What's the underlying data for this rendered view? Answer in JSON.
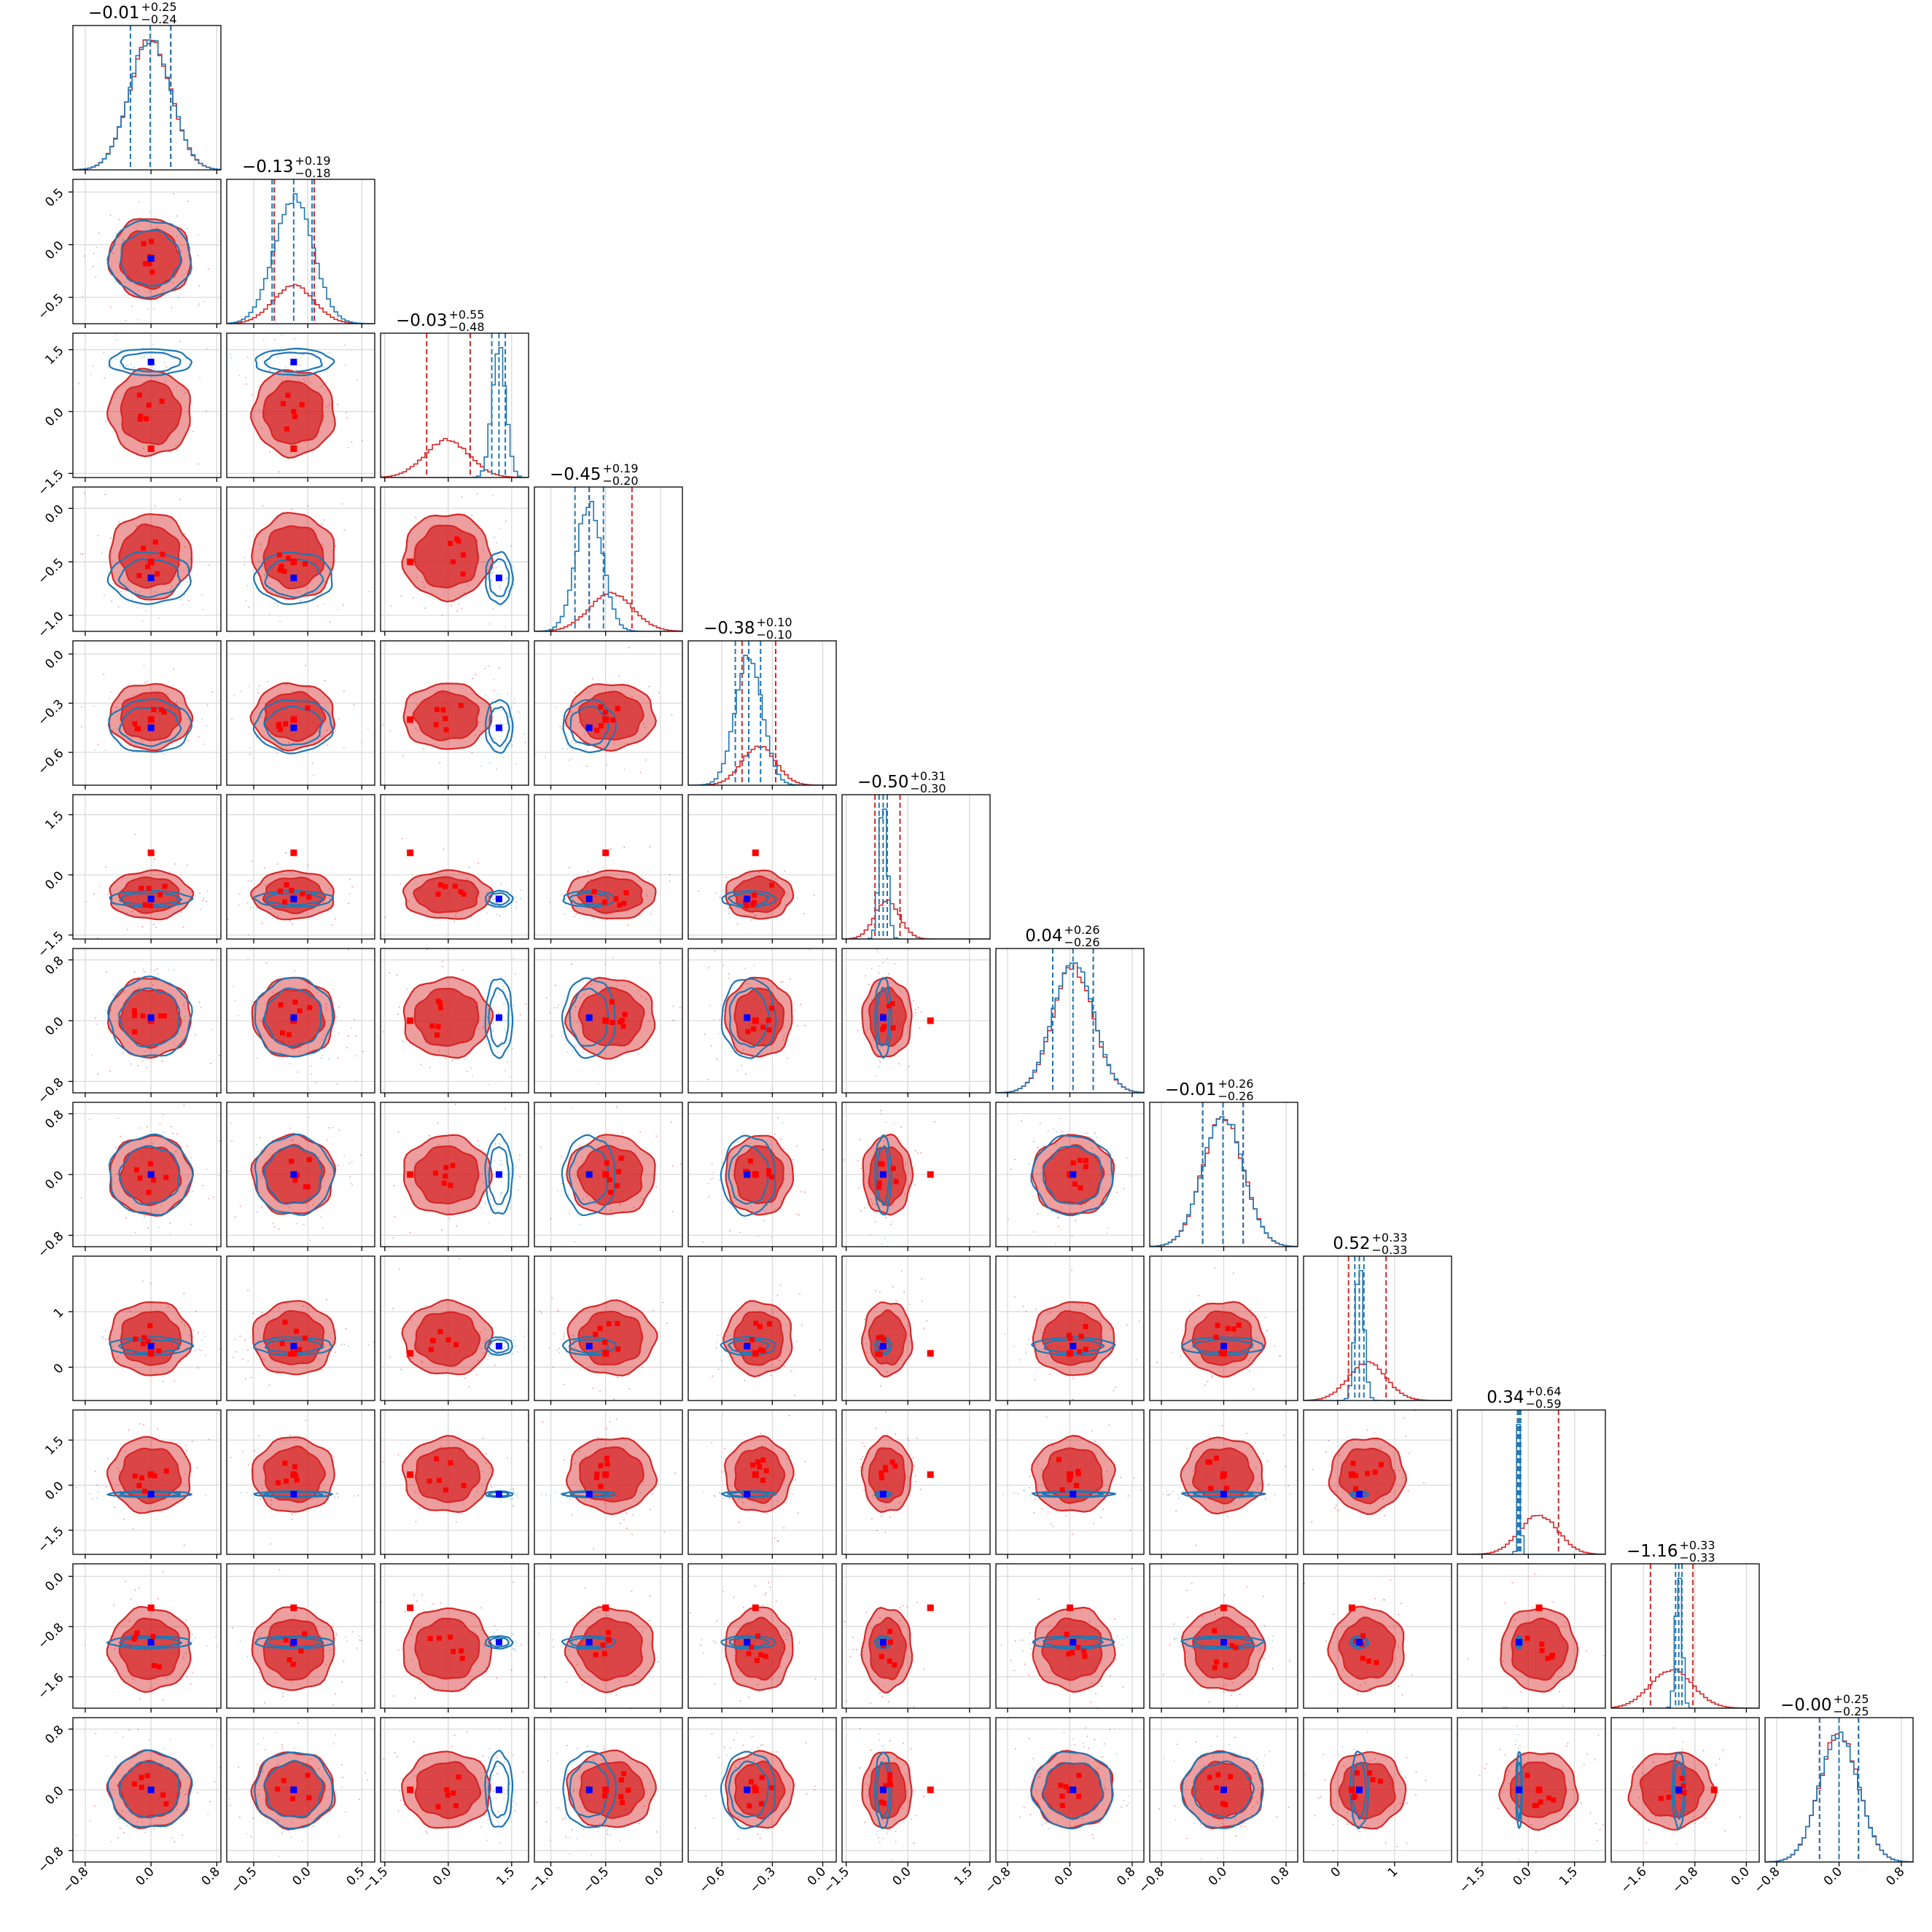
{
  "chart_data": {
    "type": "corner",
    "n_params": 12,
    "colors": {
      "series_1": "#d62728",
      "series_2": "#1f77b4",
      "marker_red": "#ff0000",
      "marker_blue": "#0000ff"
    },
    "grid": true,
    "legend": "none",
    "series": [
      {
        "color": "#d62728"
      },
      {
        "color": "#1f77b4"
      }
    ],
    "params": [
      {
        "title_main": "−0.01",
        "title_sup": "+0.25",
        "title_sub": "−0.24",
        "range": [
          -0.95,
          0.85
        ],
        "ticks": [
          "−0.8",
          "0.0",
          "0.8"
        ],
        "tick_values": [
          -0.8,
          0.0,
          0.8
        ],
        "series_1": {
          "q16": -0.25,
          "q50": -0.01,
          "q84": 0.24,
          "sigma": 0.25
        },
        "series_2": {
          "q16": -0.25,
          "q50": -0.01,
          "q84": 0.24,
          "sigma": 0.25
        },
        "truth_red": 0.0,
        "truth_blue": 0.0
      },
      {
        "title_main": "−0.13",
        "title_sup": "+0.19",
        "title_sub": "−0.18",
        "range": [
          -0.75,
          0.62
        ],
        "ticks": [
          "−0.5",
          "0.0",
          "0.5"
        ],
        "tick_values": [
          -0.5,
          0.0,
          0.5
        ],
        "series_1": {
          "q16": -0.31,
          "q50": -0.13,
          "q84": 0.06,
          "sigma": 0.19
        },
        "series_2": {
          "q16": -0.33,
          "q50": -0.13,
          "q84": 0.04,
          "sigma": 0.18
        },
        "truth_red": -0.13,
        "truth_blue": -0.13
      },
      {
        "title_main": "−0.03",
        "title_sup": "+0.55",
        "title_sub": "−0.48",
        "range": [
          -1.6,
          1.9
        ],
        "ticks": [
          "−1.5",
          "0.0",
          "1.5"
        ],
        "tick_values": [
          -1.5,
          0.0,
          1.5
        ],
        "series_1": {
          "q16": -0.51,
          "q50": -0.03,
          "q84": 0.52,
          "sigma": 0.52
        },
        "series_2": {
          "q16": 1.03,
          "q50": 1.2,
          "q84": 1.35,
          "sigma": 0.16
        },
        "truth_red": -0.9,
        "truth_blue": 1.2
      },
      {
        "title_main": "−0.45",
        "title_sup": "+0.19",
        "title_sub": "−0.20",
        "range": [
          -1.15,
          0.2
        ],
        "ticks": [
          "−1.0",
          "−0.5",
          "0.0"
        ],
        "tick_values": [
          -1.0,
          -0.5,
          0.0
        ],
        "series_1": {
          "q16": -0.65,
          "q50": -0.45,
          "q84": -0.26,
          "sigma": 0.2
        },
        "series_2": {
          "q16": -0.78,
          "q50": -0.65,
          "q84": -0.52,
          "sigma": 0.12
        },
        "truth_red": -0.5,
        "truth_blue": -0.65
      },
      {
        "title_main": "−0.38",
        "title_sup": "+0.10",
        "title_sub": "−0.10",
        "range": [
          -0.8,
          0.08
        ],
        "ticks": [
          "−0.6",
          "−0.3",
          "0.0"
        ],
        "tick_values": [
          -0.6,
          -0.3,
          0.0
        ],
        "series_1": {
          "q16": -0.48,
          "q50": -0.38,
          "q84": -0.28,
          "sigma": 0.1
        },
        "series_2": {
          "q16": -0.52,
          "q50": -0.44,
          "q84": -0.37,
          "sigma": 0.08
        },
        "truth_red": -0.4,
        "truth_blue": -0.45
      },
      {
        "title_main": "−0.50",
        "title_sup": "+0.31",
        "title_sub": "−0.30",
        "range": [
          -1.6,
          2.0
        ],
        "ticks": [
          "−1.5",
          "0.0",
          "1.5"
        ],
        "tick_values": [
          -1.5,
          0.0,
          1.5
        ],
        "series_1": {
          "q16": -0.8,
          "q50": -0.5,
          "q84": -0.19,
          "sigma": 0.3
        },
        "series_2": {
          "q16": -0.7,
          "q50": -0.6,
          "q84": -0.5,
          "sigma": 0.1
        },
        "truth_red": 0.55,
        "truth_blue": -0.6
      },
      {
        "title_main": "0.04",
        "title_sup": "+0.26",
        "title_sub": "−0.26",
        "range": [
          -0.95,
          0.95
        ],
        "ticks": [
          "−0.8",
          "0.0",
          "0.8"
        ],
        "tick_values": [
          -0.8,
          0.0,
          0.8
        ],
        "series_1": {
          "q16": -0.22,
          "q50": 0.04,
          "q84": 0.3,
          "sigma": 0.26
        },
        "series_2": {
          "q16": -0.22,
          "q50": 0.04,
          "q84": 0.3,
          "sigma": 0.26
        },
        "truth_red": 0.0,
        "truth_blue": 0.04
      },
      {
        "title_main": "−0.01",
        "title_sup": "+0.26",
        "title_sub": "−0.26",
        "range": [
          -0.95,
          0.95
        ],
        "ticks": [
          "−0.8",
          "0.0",
          "0.8"
        ],
        "tick_values": [
          -0.8,
          0.0,
          0.8
        ],
        "series_1": {
          "q16": -0.27,
          "q50": -0.01,
          "q84": 0.25,
          "sigma": 0.26
        },
        "series_2": {
          "q16": -0.27,
          "q50": -0.01,
          "q84": 0.25,
          "sigma": 0.26
        },
        "truth_red": 0.0,
        "truth_blue": 0.0
      },
      {
        "title_main": "0.52",
        "title_sup": "+0.33",
        "title_sub": "−0.33",
        "range": [
          -0.6,
          2.0
        ],
        "ticks": [
          "0",
          "1"
        ],
        "tick_values": [
          0,
          1
        ],
        "series_1": {
          "q16": 0.19,
          "q50": 0.52,
          "q84": 0.85,
          "sigma": 0.33
        },
        "series_2": {
          "q16": 0.3,
          "q50": 0.38,
          "q84": 0.46,
          "sigma": 0.08
        },
        "truth_red": 0.25,
        "truth_blue": 0.38
      },
      {
        "title_main": "0.34",
        "title_sup": "+0.64",
        "title_sub": "−0.59",
        "range": [
          -2.3,
          2.5
        ],
        "ticks": [
          "−1.5",
          "0.0",
          "1.5"
        ],
        "tick_values": [
          -1.5,
          0.0,
          1.5
        ],
        "series_1": {
          "q16": -0.25,
          "q50": 0.34,
          "q84": 0.98,
          "sigma": 0.62
        },
        "series_2": {
          "q16": -0.35,
          "q50": -0.3,
          "q84": -0.25,
          "sigma": 0.05
        },
        "truth_red": 0.35,
        "truth_blue": -0.3
      },
      {
        "title_main": "−1.16",
        "title_sup": "+0.33",
        "title_sub": "−0.33",
        "range": [
          -2.1,
          0.2
        ],
        "ticks": [
          "−1.6",
          "−0.8",
          "0.0"
        ],
        "tick_values": [
          -1.6,
          -0.8,
          0.0
        ],
        "series_1": {
          "q16": -1.49,
          "q50": -1.16,
          "q84": -0.83,
          "sigma": 0.33
        },
        "series_2": {
          "q16": -1.1,
          "q50": -1.05,
          "q84": -1.0,
          "sigma": 0.05
        },
        "truth_red": -0.5,
        "truth_blue": -1.05
      },
      {
        "title_main": "−0.00",
        "title_sup": "+0.25",
        "title_sub": "−0.25",
        "range": [
          -0.95,
          0.95
        ],
        "ticks": [
          "−0.8",
          "0.0",
          "0.8"
        ],
        "tick_values": [
          -0.8,
          0.0,
          0.8
        ],
        "series_1": {
          "q16": -0.25,
          "q50": 0.0,
          "q84": 0.25,
          "sigma": 0.25
        },
        "series_2": {
          "q16": -0.25,
          "q50": 0.0,
          "q84": 0.25,
          "sigma": 0.25
        },
        "truth_red": 0.0,
        "truth_blue": 0.0
      }
    ]
  }
}
